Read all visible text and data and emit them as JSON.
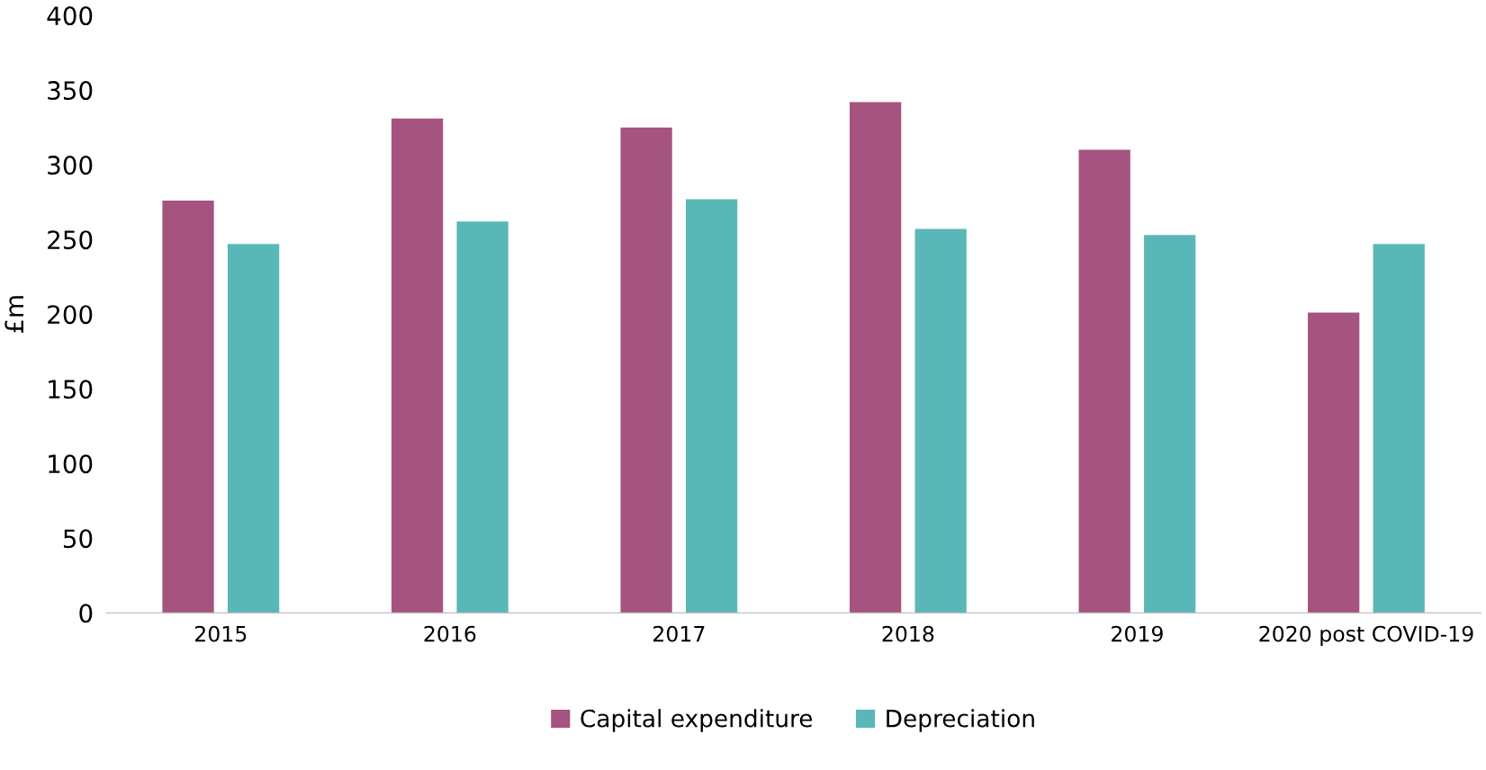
{
  "chart_data": {
    "type": "bar",
    "ylabel": "£m",
    "categories": [
      "2015",
      "2016",
      "2017",
      "2018",
      "2019",
      "2020 post COVID-19"
    ],
    "series": [
      {
        "name": "Capital expenditure",
        "color": "#a5537f",
        "values": [
          276,
          331,
          325,
          342,
          310,
          201
        ]
      },
      {
        "name": "Depreciation",
        "color": "#5ab7b7",
        "values": [
          247,
          262,
          277,
          257,
          253,
          247
        ]
      }
    ],
    "ylim": [
      0,
      400
    ],
    "yticks": [
      0,
      50,
      100,
      150,
      200,
      250,
      300,
      350,
      400
    ],
    "grid": false,
    "legend": "bottom"
  }
}
